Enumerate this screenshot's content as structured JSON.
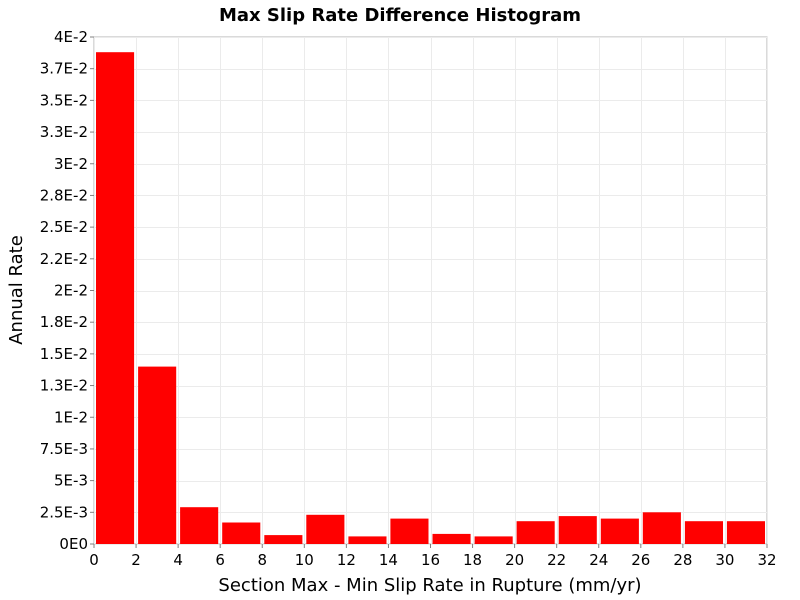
{
  "chart_data": {
    "type": "bar",
    "title": "Max Slip Rate Difference Histogram",
    "xlabel": "Section Max - Min Slip Rate in Rupture (mm/yr)",
    "ylabel": "Annual Rate",
    "xlim": [
      0,
      32
    ],
    "ylim": [
      0,
      0.04
    ],
    "bin_width": 2,
    "bin_starts": [
      0,
      2,
      4,
      6,
      8,
      10,
      12,
      14,
      16,
      18,
      20,
      22,
      24,
      26,
      28,
      30
    ],
    "values": [
      0.0388,
      0.014,
      0.0029,
      0.0017,
      0.0007,
      0.0023,
      0.0006,
      0.002,
      0.0008,
      0.0006,
      0.0018,
      0.0022,
      0.002,
      0.0025,
      0.0018,
      0.0018
    ],
    "bar_color": "#ff0000",
    "grid": true,
    "x_ticks": [
      {
        "value": 0,
        "label": "0"
      },
      {
        "value": 2,
        "label": "2"
      },
      {
        "value": 4,
        "label": "4"
      },
      {
        "value": 6,
        "label": "6"
      },
      {
        "value": 8,
        "label": "8"
      },
      {
        "value": 10,
        "label": "10"
      },
      {
        "value": 12,
        "label": "12"
      },
      {
        "value": 14,
        "label": "14"
      },
      {
        "value": 16,
        "label": "16"
      },
      {
        "value": 18,
        "label": "18"
      },
      {
        "value": 20,
        "label": "20"
      },
      {
        "value": 22,
        "label": "22"
      },
      {
        "value": 24,
        "label": "24"
      },
      {
        "value": 26,
        "label": "26"
      },
      {
        "value": 28,
        "label": "28"
      },
      {
        "value": 30,
        "label": "30"
      },
      {
        "value": 32,
        "label": "32"
      }
    ],
    "y_ticks": [
      {
        "value": 0,
        "label": "0E0"
      },
      {
        "value": 0.0025,
        "label": "2.5E-3"
      },
      {
        "value": 0.005,
        "label": "5E-3"
      },
      {
        "value": 0.0075,
        "label": "7.5E-3"
      },
      {
        "value": 0.01,
        "label": "1E-2"
      },
      {
        "value": 0.0125,
        "label": "1.3E-2"
      },
      {
        "value": 0.015,
        "label": "1.5E-2"
      },
      {
        "value": 0.0175,
        "label": "1.8E-2"
      },
      {
        "value": 0.02,
        "label": "2E-2"
      },
      {
        "value": 0.0225,
        "label": "2.2E-2"
      },
      {
        "value": 0.025,
        "label": "2.5E-2"
      },
      {
        "value": 0.0275,
        "label": "2.8E-2"
      },
      {
        "value": 0.03,
        "label": "3E-2"
      },
      {
        "value": 0.0325,
        "label": "3.3E-2"
      },
      {
        "value": 0.035,
        "label": "3.5E-2"
      },
      {
        "value": 0.0375,
        "label": "3.7E-2"
      },
      {
        "value": 0.04,
        "label": "4E-2"
      }
    ]
  }
}
